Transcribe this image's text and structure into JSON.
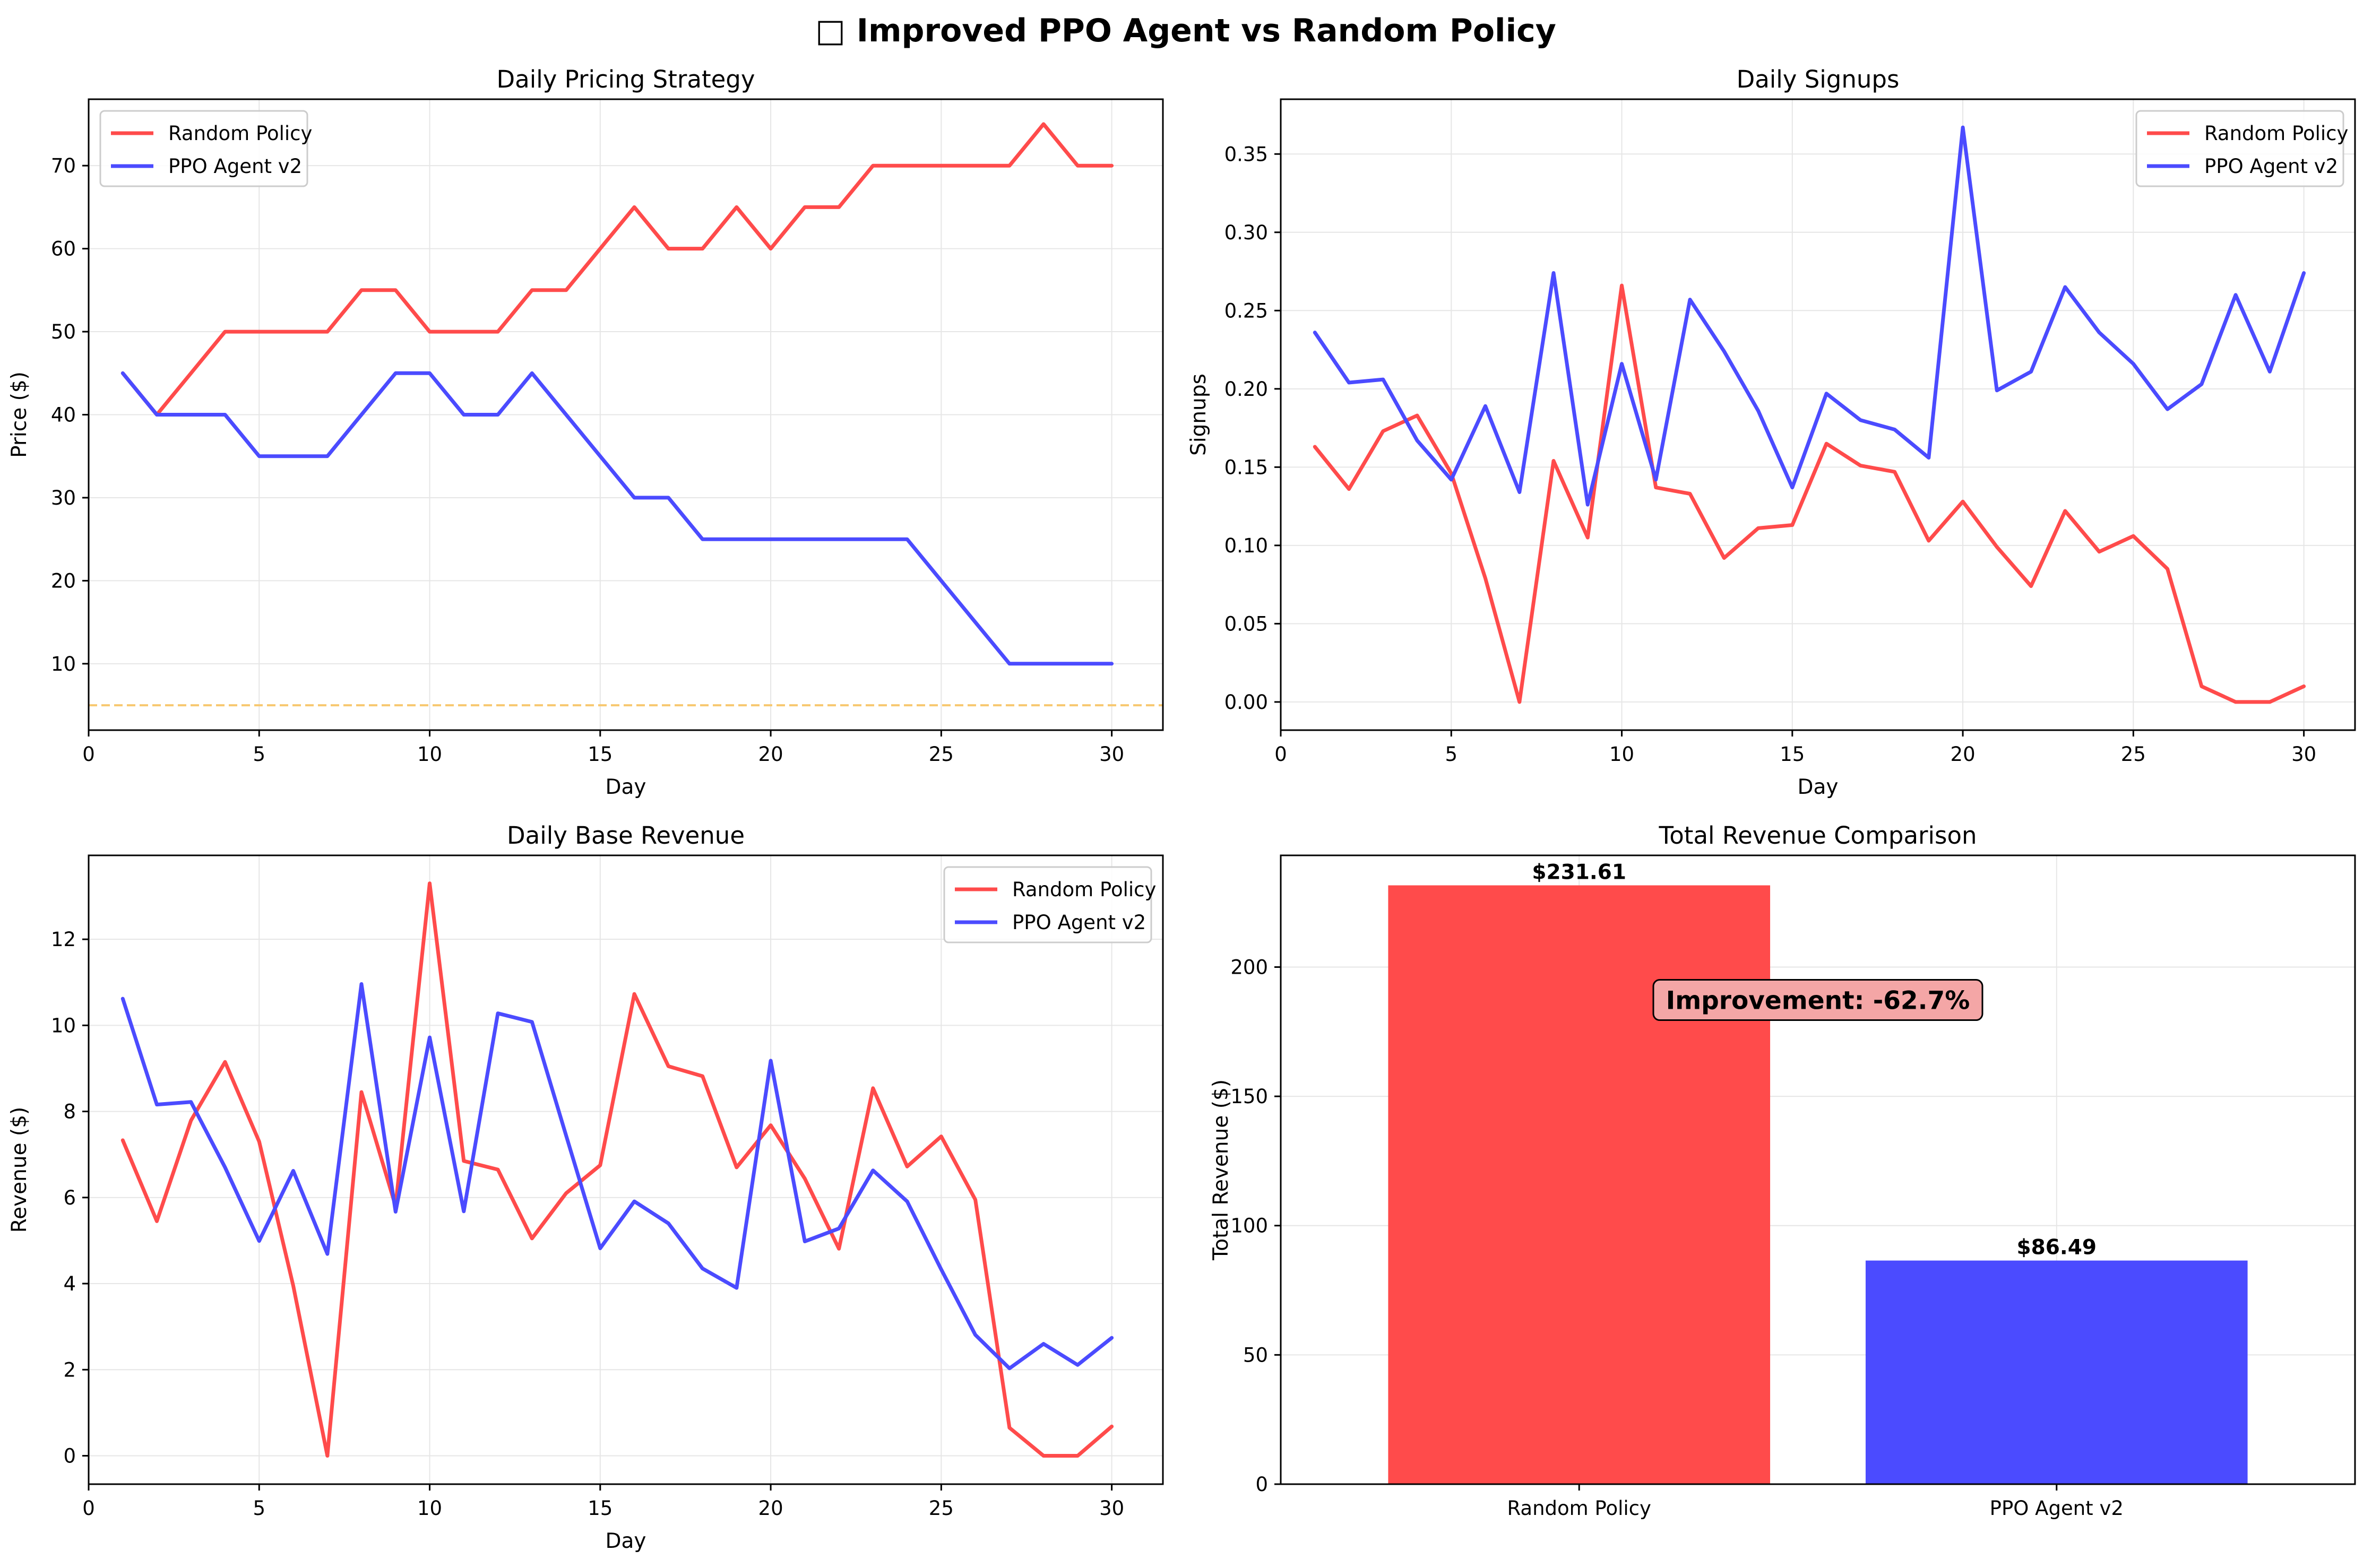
{
  "figure_title": "□ Improved PPO Agent vs Random Policy",
  "colors": {
    "random": "#ff4b4b",
    "ppo": "#4b4bff",
    "floor_line": "#f7c870",
    "grid": "#e6e6e6",
    "annotation_fill": "#f4a6a6"
  },
  "chart_data": [
    {
      "id": "pricing",
      "type": "line",
      "title": "Daily Pricing Strategy",
      "xlabel": "Day",
      "ylabel": "Price ($)",
      "xlim": [
        0,
        31.5
      ],
      "ylim": [
        2,
        78
      ],
      "xticks": [
        0,
        5,
        10,
        15,
        20,
        25,
        30
      ],
      "yticks": [
        10,
        20,
        30,
        40,
        50,
        60,
        70
      ],
      "grid": true,
      "legend": "upper left",
      "x": [
        1,
        2,
        3,
        4,
        5,
        6,
        7,
        8,
        9,
        10,
        11,
        12,
        13,
        14,
        15,
        16,
        17,
        18,
        19,
        20,
        21,
        22,
        23,
        24,
        25,
        26,
        27,
        28,
        29,
        30
      ],
      "series": [
        {
          "name": "Random Policy",
          "color": "#ff4b4b",
          "values": [
            45,
            40,
            45,
            50,
            50,
            50,
            50,
            55,
            55,
            50,
            50,
            50,
            55,
            55,
            60,
            65,
            60,
            60,
            65,
            60,
            65,
            65,
            70,
            70,
            70,
            70,
            70,
            75,
            70,
            70
          ]
        },
        {
          "name": "PPO Agent v2",
          "color": "#4b4bff",
          "values": [
            45,
            40,
            40,
            40,
            35,
            35,
            35,
            40,
            45,
            45,
            40,
            40,
            45,
            40,
            35,
            30,
            30,
            25,
            25,
            25,
            25,
            25,
            25,
            25,
            20,
            15,
            10,
            10,
            10,
            10
          ]
        }
      ],
      "hline": {
        "y": 5,
        "color": "#f7c870",
        "style": "dashed"
      }
    },
    {
      "id": "signups",
      "type": "line",
      "title": "Daily Signups",
      "xlabel": "Day",
      "ylabel": "Signups",
      "xlim": [
        0,
        31.5
      ],
      "ylim": [
        -0.018,
        0.385
      ],
      "xticks": [
        0,
        5,
        10,
        15,
        20,
        25,
        30
      ],
      "yticks": [
        0.0,
        0.05,
        0.1,
        0.15,
        0.2,
        0.25,
        0.3,
        0.35
      ],
      "ytick_decimals": 2,
      "grid": true,
      "legend": "upper right",
      "x": [
        1,
        2,
        3,
        4,
        5,
        6,
        7,
        8,
        9,
        10,
        11,
        12,
        13,
        14,
        15,
        16,
        17,
        18,
        19,
        20,
        21,
        22,
        23,
        24,
        25,
        26,
        27,
        28,
        29,
        30
      ],
      "series": [
        {
          "name": "Random Policy",
          "color": "#ff4b4b",
          "values": [
            0.163,
            0.136,
            0.173,
            0.183,
            0.146,
            0.079,
            0.0,
            0.154,
            0.105,
            0.266,
            0.137,
            0.133,
            0.092,
            0.111,
            0.113,
            0.165,
            0.151,
            0.147,
            0.103,
            0.128,
            0.099,
            0.074,
            0.122,
            0.096,
            0.106,
            0.085,
            0.01,
            0.0,
            0.0,
            0.01
          ]
        },
        {
          "name": "PPO Agent v2",
          "color": "#4b4bff",
          "values": [
            0.236,
            0.204,
            0.206,
            0.167,
            0.142,
            0.189,
            0.134,
            0.274,
            0.126,
            0.216,
            0.142,
            0.257,
            0.224,
            0.186,
            0.137,
            0.197,
            0.18,
            0.174,
            0.156,
            0.367,
            0.199,
            0.211,
            0.265,
            0.236,
            0.216,
            0.187,
            0.203,
            0.26,
            0.211,
            0.274
          ]
        }
      ]
    },
    {
      "id": "revenue",
      "type": "line",
      "title": "Daily Base Revenue",
      "xlabel": "Day",
      "ylabel": "Revenue ($)",
      "xlim": [
        0,
        31.5
      ],
      "ylim": [
        -0.66,
        13.95
      ],
      "xticks": [
        0,
        5,
        10,
        15,
        20,
        25,
        30
      ],
      "yticks": [
        0,
        2,
        4,
        6,
        8,
        10,
        12
      ],
      "grid": true,
      "legend": "upper right",
      "x": [
        1,
        2,
        3,
        4,
        5,
        6,
        7,
        8,
        9,
        10,
        11,
        12,
        13,
        14,
        15,
        16,
        17,
        18,
        19,
        20,
        21,
        22,
        23,
        24,
        25,
        26,
        27,
        28,
        29,
        30
      ],
      "series": [
        {
          "name": "Random Policy",
          "color": "#ff4b4b",
          "values": [
            7.33,
            5.45,
            7.79,
            9.15,
            7.3,
            3.95,
            0.0,
            8.45,
            5.8,
            13.3,
            6.85,
            6.65,
            5.05,
            6.1,
            6.75,
            10.73,
            9.05,
            8.82,
            6.7,
            7.68,
            6.44,
            4.81,
            8.54,
            6.72,
            7.42,
            5.95,
            0.65,
            0.0,
            0.0,
            0.68
          ]
        },
        {
          "name": "PPO Agent v2",
          "color": "#4b4bff",
          "values": [
            10.62,
            8.16,
            8.22,
            6.7,
            4.99,
            6.62,
            4.69,
            10.96,
            5.67,
            9.72,
            5.68,
            10.28,
            10.08,
            7.44,
            4.82,
            5.91,
            5.4,
            4.35,
            3.9,
            9.18,
            4.98,
            5.28,
            6.63,
            5.91,
            4.33,
            2.81,
            2.03,
            2.6,
            2.11,
            2.74
          ]
        }
      ]
    },
    {
      "id": "total",
      "type": "bar",
      "title": "Total Revenue Comparison",
      "xlabel": "",
      "ylabel": "Total Revenue ($)",
      "ylim": [
        0,
        243.2
      ],
      "yticks": [
        0,
        50,
        100,
        150,
        200
      ],
      "grid": true,
      "categories": [
        "Random Policy",
        "PPO Agent v2"
      ],
      "values": [
        231.61,
        86.49
      ],
      "colors": [
        "#ff4b4b",
        "#4b4bff"
      ],
      "value_labels": [
        "$231.61",
        "$86.49"
      ],
      "annotation": "Improvement: -62.7%"
    }
  ]
}
